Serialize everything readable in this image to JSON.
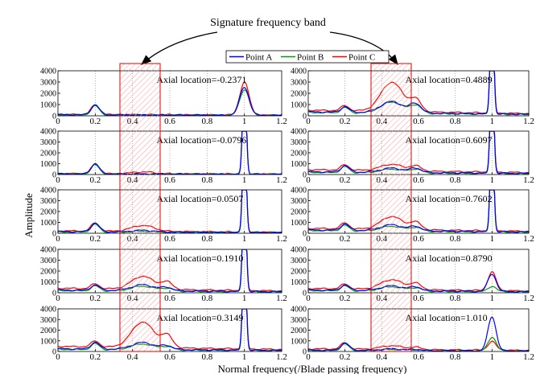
{
  "chart_data": {
    "type": "line",
    "annotation": "Signature frequency band",
    "band_range": [
      0.35,
      0.57
    ],
    "xlabel": "Normal frequency(/Blade passing frequency)",
    "ylabel": "Amplitude",
    "xlim": [
      0,
      1.2
    ],
    "ylim": [
      0,
      4000
    ],
    "xticks": [
      "0",
      "0.2",
      "0.4",
      "0.6",
      "0.8",
      "1",
      "1.2"
    ],
    "yticks": [
      "0",
      "1000",
      "2000",
      "3000",
      "4000"
    ],
    "legend": [
      {
        "name": "Point A",
        "color": "#0000ff"
      },
      {
        "name": "Point B",
        "color": "#00a000"
      },
      {
        "name": "Point C",
        "color": "#ff0000"
      }
    ],
    "panels": [
      {
        "label": "Axial location=-0.2371",
        "baseline": [
          100,
          80,
          120
        ],
        "peak02": [
          900,
          800,
          850
        ],
        "band": [
          0,
          0,
          0
        ],
        "peak06": [
          0,
          0,
          0
        ],
        "peak1": [
          2500,
          2300,
          2900
        ],
        "peak1_width": 0.025
      },
      {
        "label": "Axial location=-0.0796",
        "baseline": [
          60,
          50,
          80
        ],
        "peak02": [
          950,
          850,
          850
        ],
        "band": [
          0,
          0,
          180
        ],
        "peak06": [
          0,
          0,
          0
        ],
        "peak1": [
          12000,
          11000,
          12000
        ],
        "peak1_width": 0.009
      },
      {
        "label": "Axial location=0.0507",
        "baseline": [
          150,
          120,
          220
        ],
        "peak02": [
          800,
          700,
          750
        ],
        "band": [
          150,
          100,
          550
        ],
        "peak06": [
          0,
          0,
          0
        ],
        "peak1": [
          12000,
          11000,
          12000
        ],
        "peak1_width": 0.009
      },
      {
        "label": "Axial location=0.1910",
        "baseline": [
          250,
          200,
          420
        ],
        "peak02": [
          500,
          450,
          450
        ],
        "band": [
          550,
          450,
          1200
        ],
        "peak06": [
          300,
          250,
          650
        ],
        "peak1": [
          12000,
          11000,
          12000
        ],
        "peak1_width": 0.009
      },
      {
        "label": "Axial location=0.3149",
        "baseline": [
          250,
          200,
          480
        ],
        "peak02": [
          650,
          550,
          550
        ],
        "band": [
          650,
          550,
          2400
        ],
        "peak06": [
          350,
          300,
          1100
        ],
        "peak1": [
          12000,
          11000,
          12000
        ],
        "peak1_width": 0.009
      },
      {
        "label": "Axial location=0.4889",
        "baseline": [
          350,
          300,
          500
        ],
        "peak02": [
          500,
          450,
          450
        ],
        "band": [
          1000,
          1000,
          2600
        ],
        "peak06": [
          800,
          700,
          1000
        ],
        "peak1": [
          12000,
          11000,
          12000
        ],
        "peak1_width": 0.009
      },
      {
        "label": "Axial location=0.6097",
        "baseline": [
          250,
          200,
          450
        ],
        "peak02": [
          600,
          550,
          500
        ],
        "band": [
          400,
          350,
          600
        ],
        "peak06": [
          400,
          350,
          450
        ],
        "peak1": [
          12000,
          11000,
          12000
        ],
        "peak1_width": 0.009
      },
      {
        "label": "Axial location=0.7602",
        "baseline": [
          300,
          250,
          450
        ],
        "peak02": [
          600,
          500,
          550
        ],
        "band": [
          550,
          450,
          1200
        ],
        "peak06": [
          400,
          350,
          650
        ],
        "peak1": [
          12000,
          11000,
          12000
        ],
        "peak1_width": 0.009
      },
      {
        "label": "Axial location=0.8790",
        "baseline": [
          250,
          200,
          400
        ],
        "peak02": [
          500,
          450,
          450
        ],
        "band": [
          450,
          400,
          900
        ],
        "peak06": [
          350,
          300,
          550
        ],
        "peak1": [
          1600,
          500,
          1700
        ],
        "peak1_width": 0.022
      },
      {
        "label": "Axial location=1.010",
        "baseline": [
          120,
          100,
          250
        ],
        "peak02": [
          700,
          600,
          600
        ],
        "band": [
          150,
          120,
          350
        ],
        "peak06": [
          100,
          100,
          200
        ],
        "peak1": [
          3200,
          1300,
          800
        ],
        "peak1_width": 0.022
      }
    ]
  }
}
